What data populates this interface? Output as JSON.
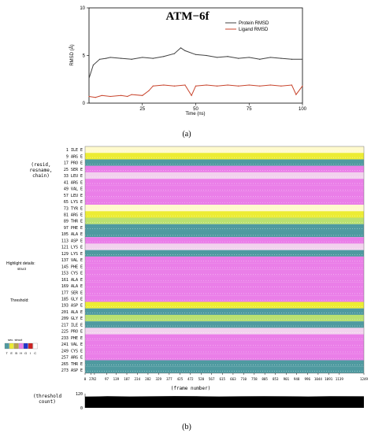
{
  "panel_a_caption": "(a)",
  "panel_b_caption": "(b)",
  "chart_data": [
    {
      "type": "line",
      "title": "ATM−6f",
      "xlabel": "Time (ns)",
      "ylabel": "RMSD (Å)",
      "xlim": [
        0,
        100
      ],
      "ylim": [
        0,
        10
      ],
      "x_ticks": [
        "25",
        "50",
        "75",
        "100"
      ],
      "y_ticks": [
        "0",
        "5",
        "10"
      ],
      "legend_position": "top-right",
      "series": [
        {
          "name": "Protein RMSD",
          "color": "#404040",
          "x": [
            0,
            2,
            5,
            8,
            10,
            15,
            20,
            25,
            30,
            35,
            40,
            43,
            45,
            50,
            55,
            60,
            65,
            70,
            75,
            80,
            85,
            90,
            95,
            100
          ],
          "y": [
            2.6,
            4.0,
            4.6,
            4.7,
            4.8,
            4.7,
            4.6,
            4.8,
            4.7,
            4.9,
            5.2,
            5.8,
            5.5,
            5.1,
            5.0,
            4.8,
            4.9,
            4.7,
            4.8,
            4.6,
            4.8,
            4.7,
            4.6,
            4.6
          ]
        },
        {
          "name": "Ligand RMSD",
          "color": "#c8442c",
          "x": [
            0,
            3,
            6,
            10,
            15,
            18,
            20,
            25,
            28,
            30,
            35,
            40,
            45,
            48,
            50,
            55,
            60,
            65,
            70,
            75,
            80,
            85,
            90,
            95,
            97,
            100
          ],
          "y": [
            0.7,
            0.6,
            0.8,
            0.7,
            0.8,
            0.7,
            0.9,
            0.8,
            1.3,
            1.8,
            1.9,
            1.8,
            1.9,
            0.8,
            1.8,
            1.9,
            1.8,
            1.9,
            1.8,
            1.9,
            1.8,
            1.9,
            1.8,
            1.9,
            0.9,
            1.8
          ]
        }
      ]
    },
    {
      "type": "heatmap",
      "xlabel": "(frame number)",
      "x_ticks": [
        "0",
        "27",
        "42",
        "97",
        "139",
        "187",
        "234",
        "282",
        "329",
        "377",
        "425",
        "472",
        "520",
        "567",
        "615",
        "663",
        "710",
        "758",
        "805",
        "853",
        "901",
        "948",
        "996",
        "1044",
        "1091",
        "1139",
        "1249"
      ],
      "xlim": [
        0,
        1249
      ],
      "rows": [
        {
          "label": "1 ILE E",
          "color": "#fffacd"
        },
        {
          "label": "9 ARG E",
          "color": "#ecec33"
        },
        {
          "label": "17 PRO E",
          "color": "#4f9aa0"
        },
        {
          "label": "25 SER E",
          "color": "#ea7ee8"
        },
        {
          "label": "33 LEU E",
          "color": "#f2d2ee"
        },
        {
          "label": "41 ARG E",
          "color": "#ea7ee8"
        },
        {
          "label": "49 VAL E",
          "color": "#ea7ee8"
        },
        {
          "label": "57 LEU E",
          "color": "#ea7ee8"
        },
        {
          "label": "65 LYS E",
          "color": "#ea7ee8"
        },
        {
          "label": "73 TYR E",
          "color": "#fffacd"
        },
        {
          "label": "81 ARG E",
          "color": "#ecec33"
        },
        {
          "label": "89 THR E",
          "color": "#b9e070"
        },
        {
          "label": "97 PHE E",
          "color": "#4f9aa0"
        },
        {
          "label": "105 ALA E",
          "color": "#4f9aa0"
        },
        {
          "label": "113 ASP E",
          "color": "#ea7ee8"
        },
        {
          "label": "121 LYS E",
          "color": "#f2d2ee"
        },
        {
          "label": "129 LYS E",
          "color": "#4f9aa0"
        },
        {
          "label": "137 VAL E",
          "color": "#ea7ee8"
        },
        {
          "label": "145 PHE E",
          "color": "#ea7ee8"
        },
        {
          "label": "153 CYS E",
          "color": "#ea7ee8"
        },
        {
          "label": "161 ALA E",
          "color": "#ea7ee8"
        },
        {
          "label": "169 ALA E",
          "color": "#ea7ee8"
        },
        {
          "label": "177 SER E",
          "color": "#ea7ee8"
        },
        {
          "label": "185 GLY E",
          "color": "#ea7ee8"
        },
        {
          "label": "193 ASP E",
          "color": "#ecec33"
        },
        {
          "label": "201 ALA E",
          "color": "#4f9aa0"
        },
        {
          "label": "209 GLY E",
          "color": "#b9e070"
        },
        {
          "label": "217 ILE E",
          "color": "#4f9aa0"
        },
        {
          "label": "225 PRO E",
          "color": "#f2d2ee"
        },
        {
          "label": "233 PHE E",
          "color": "#ea7ee8"
        },
        {
          "label": "241 VAL E",
          "color": "#ea7ee8"
        },
        {
          "label": "249 CYS E",
          "color": "#ea7ee8"
        },
        {
          "label": "257 ARG E",
          "color": "#ea7ee8"
        },
        {
          "label": "265 THR E",
          "color": "#4f9aa0"
        },
        {
          "label": "273 ASP E",
          "color": "#4f9aa0"
        }
      ],
      "side_labels": {
        "selection": "(resid,\nresname,\nchain)",
        "highlight": "Highlight details:",
        "highlight_value": "struct",
        "threshold": "Threshold:",
        "legend_title": "sec. struct",
        "legend_codes": [
          "T",
          "E",
          "B",
          "H",
          "G",
          "I",
          "C"
        ],
        "legend_colors": [
          "#4f9aa0",
          "#ecec33",
          "#b9a34a",
          "#ea7ee8",
          "#2233cc",
          "#cc2222",
          "#ffffff"
        ]
      }
    },
    {
      "type": "area",
      "ylabel": "(threshold\ncount)",
      "y_ticks": [
        "0",
        "120"
      ],
      "ylim": [
        0,
        120
      ],
      "xlim": [
        0,
        1249
      ],
      "x": [
        0,
        100,
        200,
        300,
        400,
        500,
        600,
        700,
        800,
        900,
        1000,
        1100,
        1249
      ],
      "y": [
        95,
        98,
        96,
        97,
        99,
        98,
        96,
        97,
        98,
        97,
        96,
        98,
        97
      ],
      "color": "#000000"
    }
  ]
}
